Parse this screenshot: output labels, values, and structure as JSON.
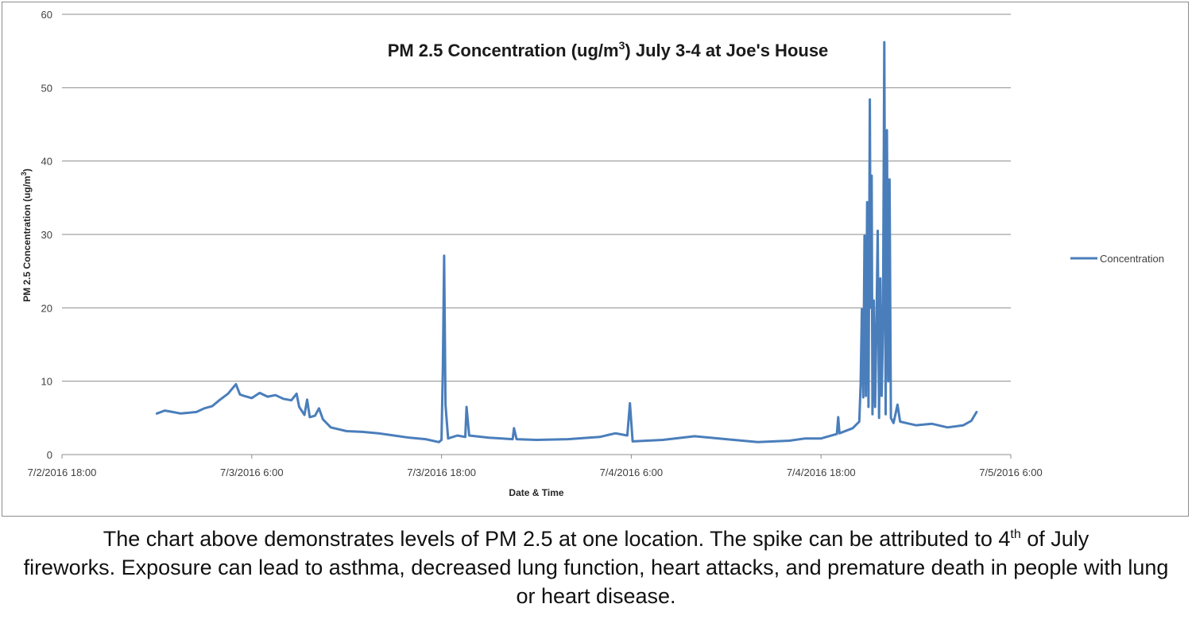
{
  "chart_data": {
    "type": "line",
    "title": "PM 2.5 Concentration (ug/m³) July 3-4 at Joe's House",
    "title_parts": {
      "before": "PM 2.5 Concentration (ug/m",
      "superscript": "3",
      "after": ") July 3-4 at Joe's House"
    },
    "xlabel": "Date & Time",
    "ylabel": "PM 2.5 Concentration (ug/m³)",
    "ylabel_parts": {
      "before": "PM 2.5 Concentration (ug/m",
      "superscript": "3",
      "after": ")"
    },
    "ylim": [
      0,
      60
    ],
    "y_ticks": [
      "0",
      "10",
      "20",
      "30",
      "40",
      "50",
      "60"
    ],
    "x_ticks": [
      "7/2/2016 18:00",
      "7/3/2016 6:00",
      "7/3/2016 18:00",
      "7/4/2016 6:00",
      "7/4/2016 18:00",
      "7/5/2016 6:00"
    ],
    "xlim": [
      "2016-07-02 18:00",
      "2016-07-05 06:00"
    ],
    "grid": true,
    "legend_position": "right",
    "line_color": "#4a7ebb",
    "series": [
      {
        "name": "Concentration",
        "points": [
          [
            "2016-07-03 00:00",
            5.6
          ],
          [
            "2016-07-03 00:30",
            6.0
          ],
          [
            "2016-07-03 01:00",
            5.8
          ],
          [
            "2016-07-03 01:30",
            5.6
          ],
          [
            "2016-07-03 02:00",
            5.7
          ],
          [
            "2016-07-03 02:30",
            5.8
          ],
          [
            "2016-07-03 03:00",
            6.3
          ],
          [
            "2016-07-03 03:30",
            6.6
          ],
          [
            "2016-07-03 04:00",
            7.5
          ],
          [
            "2016-07-03 04:30",
            8.3
          ],
          [
            "2016-07-03 05:00",
            9.6
          ],
          [
            "2016-07-03 05:15",
            8.2
          ],
          [
            "2016-07-03 05:30",
            8.0
          ],
          [
            "2016-07-03 06:00",
            7.7
          ],
          [
            "2016-07-03 06:30",
            8.4
          ],
          [
            "2016-07-03 07:00",
            7.9
          ],
          [
            "2016-07-03 07:30",
            8.1
          ],
          [
            "2016-07-03 08:00",
            7.6
          ],
          [
            "2016-07-03 08:30",
            7.4
          ],
          [
            "2016-07-03 08:50",
            8.3
          ],
          [
            "2016-07-03 09:00",
            6.5
          ],
          [
            "2016-07-03 09:20",
            5.4
          ],
          [
            "2016-07-03 09:30",
            7.5
          ],
          [
            "2016-07-03 09:40",
            5.1
          ],
          [
            "2016-07-03 10:00",
            5.3
          ],
          [
            "2016-07-03 10:15",
            6.3
          ],
          [
            "2016-07-03 10:30",
            4.8
          ],
          [
            "2016-07-03 11:00",
            3.7
          ],
          [
            "2016-07-03 12:00",
            3.2
          ],
          [
            "2016-07-03 13:00",
            3.1
          ],
          [
            "2016-07-03 14:00",
            2.9
          ],
          [
            "2016-07-03 15:00",
            2.6
          ],
          [
            "2016-07-03 16:00",
            2.3
          ],
          [
            "2016-07-03 17:00",
            2.1
          ],
          [
            "2016-07-03 17:50",
            1.7
          ],
          [
            "2016-07-03 18:00",
            2.0
          ],
          [
            "2016-07-03 18:05",
            11.9
          ],
          [
            "2016-07-03 18:10",
            27.1
          ],
          [
            "2016-07-03 18:15",
            6.8
          ],
          [
            "2016-07-03 18:25",
            2.2
          ],
          [
            "2016-07-03 19:00",
            2.6
          ],
          [
            "2016-07-03 19:30",
            2.4
          ],
          [
            "2016-07-03 19:35",
            6.5
          ],
          [
            "2016-07-03 19:45",
            2.6
          ],
          [
            "2016-07-03 21:00",
            2.3
          ],
          [
            "2016-07-03 22:30",
            2.1
          ],
          [
            "2016-07-03 22:35",
            3.6
          ],
          [
            "2016-07-03 22:45",
            2.1
          ],
          [
            "2016-07-04 00:00",
            2.0
          ],
          [
            "2016-07-04 02:00",
            2.1
          ],
          [
            "2016-07-04 04:00",
            2.4
          ],
          [
            "2016-07-04 05:00",
            2.9
          ],
          [
            "2016-07-04 05:45",
            2.6
          ],
          [
            "2016-07-04 05:55",
            7.0
          ],
          [
            "2016-07-04 06:05",
            1.8
          ],
          [
            "2016-07-04 08:00",
            2.0
          ],
          [
            "2016-07-04 10:00",
            2.5
          ],
          [
            "2016-07-04 12:00",
            2.1
          ],
          [
            "2016-07-04 14:00",
            1.7
          ],
          [
            "2016-07-04 16:00",
            1.9
          ],
          [
            "2016-07-04 17:00",
            2.2
          ],
          [
            "2016-07-04 18:00",
            2.2
          ],
          [
            "2016-07-04 19:00",
            2.8
          ],
          [
            "2016-07-04 19:05",
            5.1
          ],
          [
            "2016-07-04 19:10",
            2.9
          ],
          [
            "2016-07-04 20:00",
            3.6
          ],
          [
            "2016-07-04 20:25",
            4.5
          ],
          [
            "2016-07-04 20:30",
            9.5
          ],
          [
            "2016-07-04 20:35",
            19.8
          ],
          [
            "2016-07-04 20:40",
            7.8
          ],
          [
            "2016-07-04 20:45",
            29.8
          ],
          [
            "2016-07-04 20:50",
            8.0
          ],
          [
            "2016-07-04 20:55",
            34.4
          ],
          [
            "2016-07-04 21:00",
            6.5
          ],
          [
            "2016-07-04 21:05",
            48.4
          ],
          [
            "2016-07-04 21:08",
            20.0
          ],
          [
            "2016-07-04 21:12",
            38.0
          ],
          [
            "2016-07-04 21:15",
            5.5
          ],
          [
            "2016-07-04 21:20",
            21.0
          ],
          [
            "2016-07-04 21:25",
            6.5
          ],
          [
            "2016-07-04 21:30",
            17.0
          ],
          [
            "2016-07-04 21:35",
            30.5
          ],
          [
            "2016-07-04 21:40",
            5.0
          ],
          [
            "2016-07-04 21:45",
            24.0
          ],
          [
            "2016-07-04 21:50",
            8.0
          ],
          [
            "2016-07-04 21:55",
            17.0
          ],
          [
            "2016-07-04 22:00",
            56.2
          ],
          [
            "2016-07-04 22:05",
            5.5
          ],
          [
            "2016-07-04 22:10",
            44.2
          ],
          [
            "2016-07-04 22:15",
            10.0
          ],
          [
            "2016-07-04 22:20",
            37.5
          ],
          [
            "2016-07-04 22:25",
            5.0
          ],
          [
            "2016-07-04 22:35",
            4.3
          ],
          [
            "2016-07-04 22:50",
            6.8
          ],
          [
            "2016-07-04 23:00",
            4.5
          ],
          [
            "2016-07-05 00:00",
            4.0
          ],
          [
            "2016-07-05 01:00",
            4.2
          ],
          [
            "2016-07-05 02:00",
            3.7
          ],
          [
            "2016-07-05 03:00",
            4.0
          ],
          [
            "2016-07-05 03:30",
            4.6
          ],
          [
            "2016-07-05 03:50",
            5.8
          ]
        ]
      }
    ]
  },
  "caption": {
    "line1_before": "The chart above demonstrates levels of PM 2.5 at one location. The spike can be attributed to 4",
    "line1_sup": "th",
    "line1_after": " of July",
    "rest": "fireworks. Exposure can lead to asthma, decreased lung function, heart attacks, and premature death in people with lung or heart disease."
  }
}
